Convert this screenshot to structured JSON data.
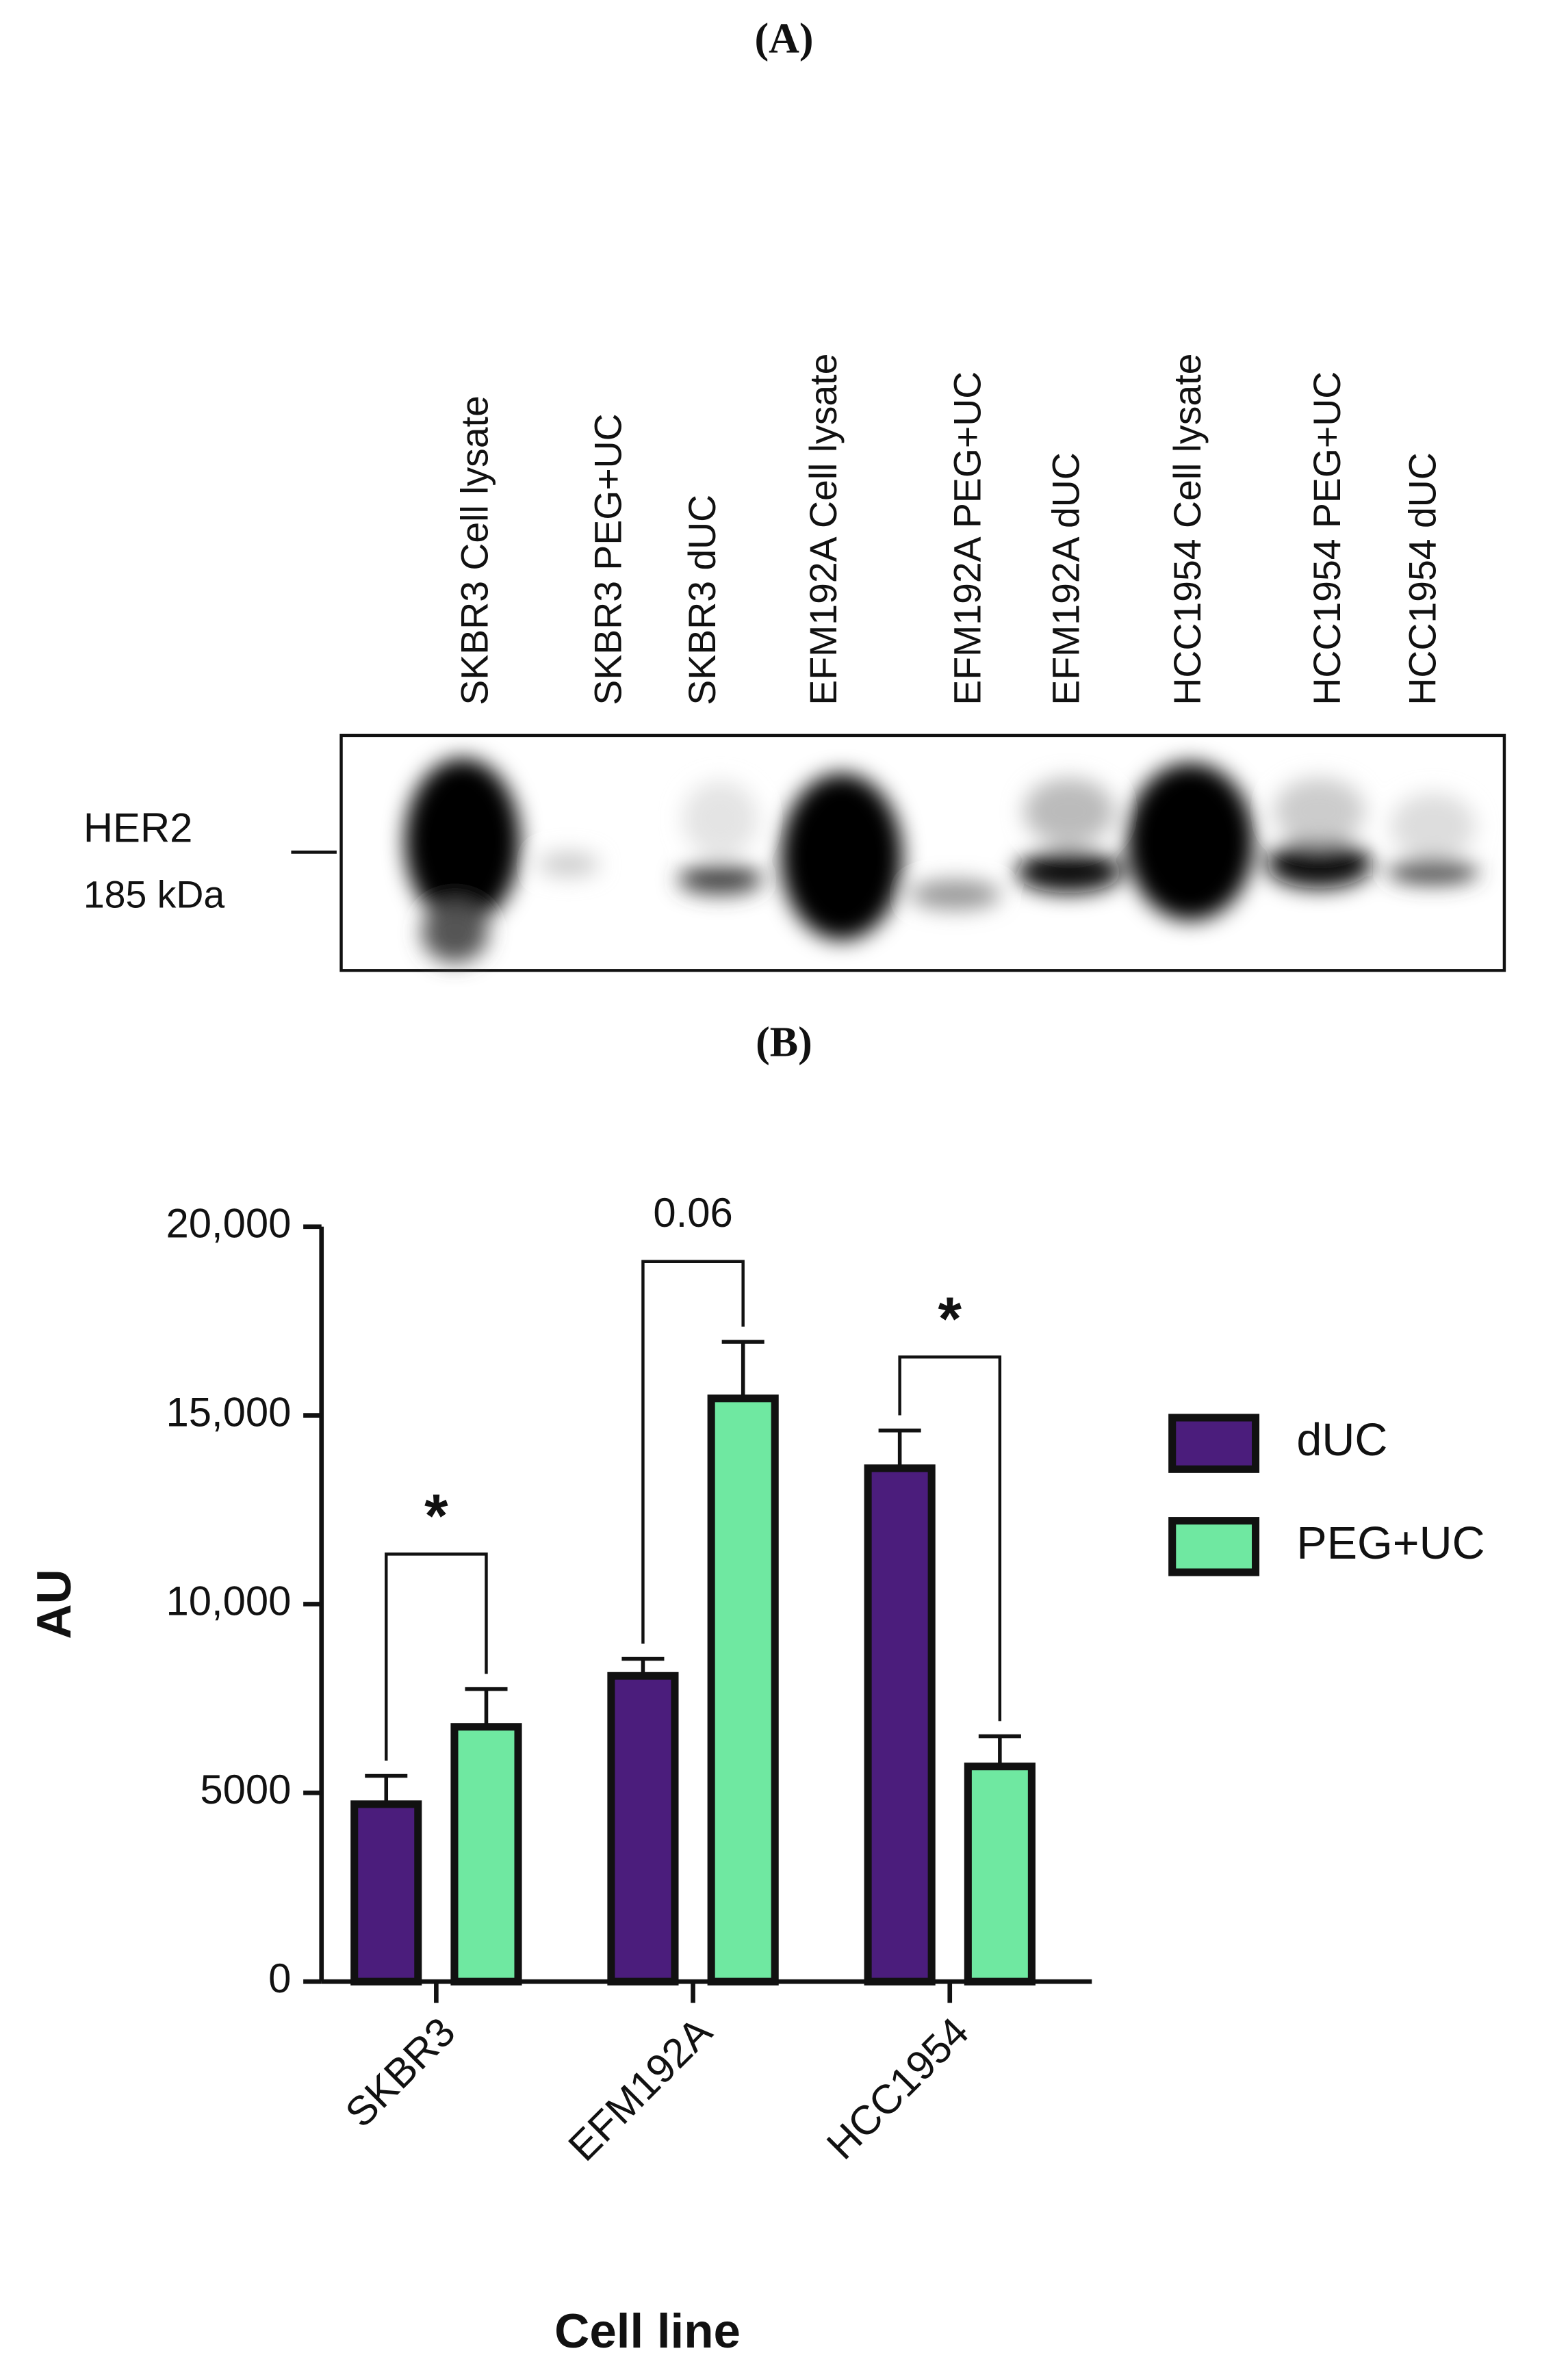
{
  "panel_a": {
    "label": "(A)",
    "lanes": [
      "SKBR3 Cell lysate",
      "SKBR3  PEG+UC",
      "SKBR3  dUC",
      "EFM192A Cell lysate",
      "EFM192A  PEG+UC",
      "EFM192A  dUC",
      "HCC1954  Cell lysate",
      "HCC1954  PEG+UC",
      "HCC1954  dUC"
    ],
    "marker": "HER2",
    "marker_size": "185 kDa"
  },
  "panel_b": {
    "label": "(B)"
  },
  "chart_data": {
    "type": "bar",
    "x_label": "Cell line",
    "y_label": "AU",
    "categories": [
      "SKBR3",
      "EFM192A",
      "HCC1954"
    ],
    "series": [
      {
        "name": "dUC",
        "color": "#4b1d7c",
        "values": [
          4700,
          8100,
          13600
        ],
        "errors": [
          750,
          450,
          1000
        ]
      },
      {
        "name": "PEG+UC",
        "color": "#6fe8a1",
        "values": [
          6750,
          15450,
          5700
        ],
        "errors": [
          1000,
          1500,
          800
        ]
      }
    ],
    "ylim": [
      0,
      20000
    ],
    "yticks": [
      0,
      5000,
      {
        "value": 10000,
        "label": "10,000"
      },
      {
        "value": 15000,
        "label": "15,000"
      },
      {
        "value": 20000,
        "label": "20,000"
      }
    ],
    "annotations": [
      "*",
      "0.06",
      "*"
    ]
  }
}
